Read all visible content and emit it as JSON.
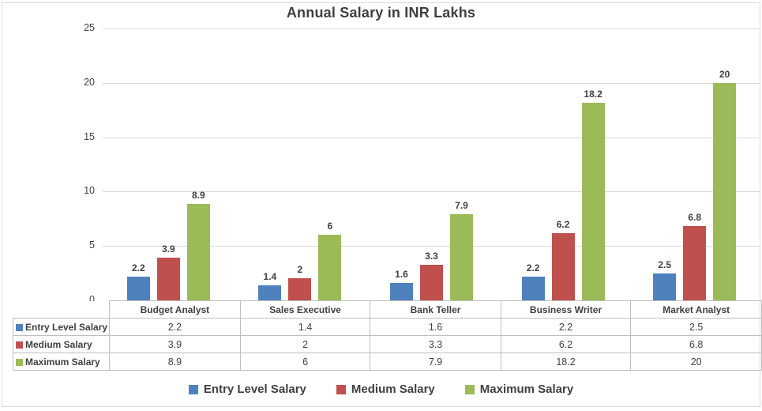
{
  "title": "Annual Salary in INR Lakhs",
  "chart_data": {
    "type": "bar",
    "title": "Annual Salary in INR Lakhs",
    "categories": [
      "Budget Analyst",
      "Sales Executive",
      "Bank Teller",
      "Business Writer",
      "Market Analyst"
    ],
    "series": [
      {
        "name": "Entry Level Salary",
        "color": "#4F81BD",
        "values": [
          2.2,
          1.4,
          1.6,
          2.2,
          2.5
        ]
      },
      {
        "name": "Medium Salary",
        "color": "#C0504D",
        "values": [
          3.9,
          2,
          3.3,
          6.2,
          6.8
        ]
      },
      {
        "name": "Maximum Salary",
        "color": "#9BBB59",
        "values": [
          8.9,
          6,
          7.9,
          18.2,
          20
        ]
      }
    ],
    "ylim": [
      0,
      25
    ],
    "yticks": [
      0,
      5,
      10,
      15,
      20,
      25
    ],
    "grid": "horizontal",
    "legend_position": "bottom",
    "data_labels_shown": true,
    "data_table_shown": true
  },
  "colors": {
    "grid": "#d9d9d9",
    "chart_border": "#d9d9d9",
    "table_border": "#bfbfbf",
    "text": "#404040",
    "title_text": "#3f3f3f"
  }
}
